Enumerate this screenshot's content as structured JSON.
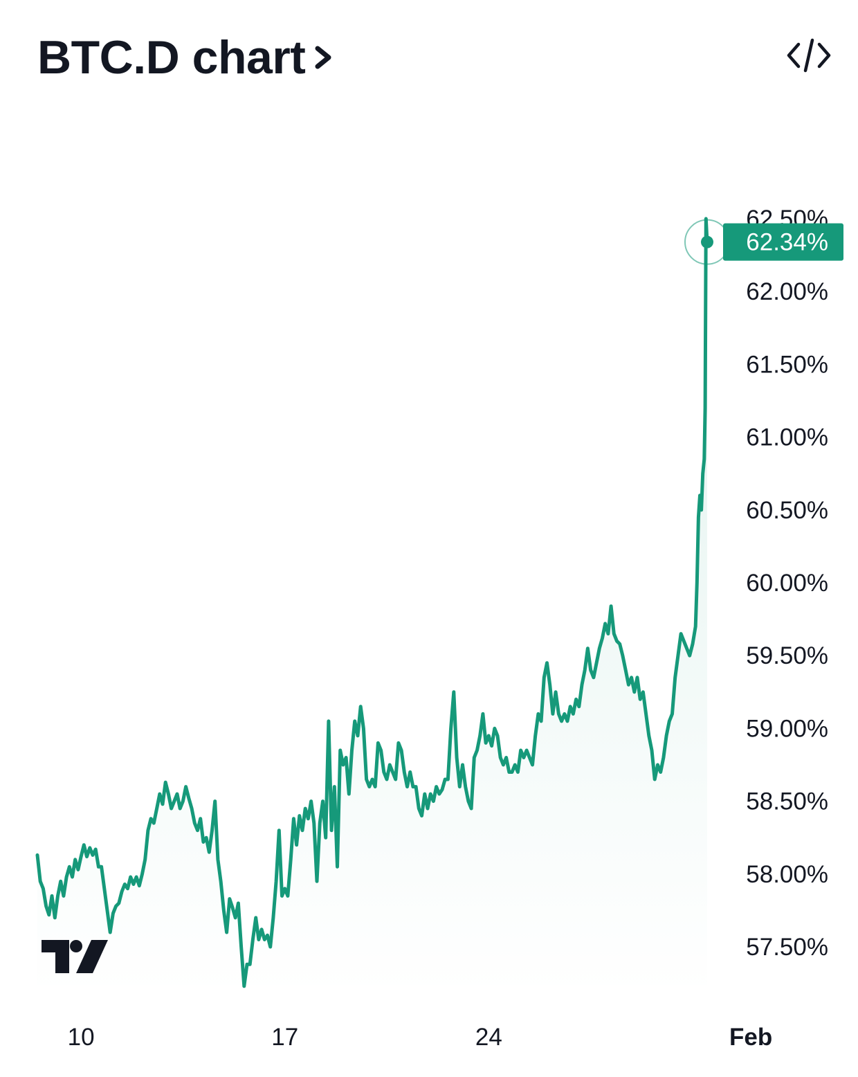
{
  "header": {
    "title": "BTC.D chart",
    "chevron_icon": "chevron-right-icon",
    "embed_icon": "code-embed-icon"
  },
  "logo": {
    "name": "tradingview-logo"
  },
  "colors": {
    "line": "#16997a",
    "badge": "#16997a",
    "text": "#131722"
  },
  "chart_data": {
    "type": "area",
    "title": "BTC.D chart",
    "xlabel": "",
    "ylabel": "",
    "ylim": [
      57.2,
      62.6
    ],
    "y_ticks": [
      62.5,
      62.0,
      61.5,
      61.0,
      60.5,
      60.0,
      59.5,
      59.0,
      58.5,
      58.0,
      57.5
    ],
    "y_tick_labels": [
      "62.50%",
      "62.00%",
      "61.50%",
      "61.00%",
      "60.50%",
      "60.00%",
      "59.50%",
      "59.00%",
      "58.50%",
      "58.00%",
      "57.50%"
    ],
    "x_ticks": [
      {
        "label": "10",
        "x": 9.5
      },
      {
        "label": "17",
        "x": 16.5
      },
      {
        "label": "24",
        "x": 23.5
      },
      {
        "label": "Feb",
        "x": 32.5,
        "bold": true
      }
    ],
    "last_value_label": "62.34%",
    "last_value": 62.34,
    "grid": false,
    "series": [
      {
        "values": [
          [
            8.0,
            58.13
          ],
          [
            8.1,
            57.95
          ],
          [
            8.2,
            57.9
          ],
          [
            8.3,
            57.78
          ],
          [
            8.4,
            57.72
          ],
          [
            8.5,
            57.85
          ],
          [
            8.6,
            57.7
          ],
          [
            8.7,
            57.85
          ],
          [
            8.8,
            57.95
          ],
          [
            8.9,
            57.85
          ],
          [
            9.0,
            57.98
          ],
          [
            9.1,
            58.05
          ],
          [
            9.2,
            57.98
          ],
          [
            9.3,
            58.1
          ],
          [
            9.4,
            58.03
          ],
          [
            9.5,
            58.12
          ],
          [
            9.6,
            58.2
          ],
          [
            9.7,
            58.12
          ],
          [
            9.8,
            58.18
          ],
          [
            9.9,
            58.13
          ],
          [
            10.0,
            58.17
          ],
          [
            10.1,
            58.05
          ],
          [
            10.2,
            58.05
          ],
          [
            10.3,
            57.9
          ],
          [
            10.4,
            57.75
          ],
          [
            10.5,
            57.6
          ],
          [
            10.6,
            57.73
          ],
          [
            10.7,
            57.78
          ],
          [
            10.8,
            57.8
          ],
          [
            10.9,
            57.88
          ],
          [
            11.0,
            57.93
          ],
          [
            11.1,
            57.9
          ],
          [
            11.2,
            57.98
          ],
          [
            11.3,
            57.93
          ],
          [
            11.4,
            57.98
          ],
          [
            11.5,
            57.92
          ],
          [
            11.6,
            58.0
          ],
          [
            11.7,
            58.1
          ],
          [
            11.8,
            58.3
          ],
          [
            11.9,
            58.38
          ],
          [
            12.0,
            58.35
          ],
          [
            12.1,
            58.45
          ],
          [
            12.2,
            58.55
          ],
          [
            12.3,
            58.48
          ],
          [
            12.4,
            58.63
          ],
          [
            12.5,
            58.55
          ],
          [
            12.6,
            58.45
          ],
          [
            12.7,
            58.5
          ],
          [
            12.8,
            58.55
          ],
          [
            12.9,
            58.45
          ],
          [
            13.0,
            58.5
          ],
          [
            13.1,
            58.6
          ],
          [
            13.2,
            58.52
          ],
          [
            13.3,
            58.45
          ],
          [
            13.4,
            58.35
          ],
          [
            13.5,
            58.3
          ],
          [
            13.6,
            58.38
          ],
          [
            13.7,
            58.22
          ],
          [
            13.8,
            58.25
          ],
          [
            13.9,
            58.15
          ],
          [
            14.0,
            58.3
          ],
          [
            14.1,
            58.5
          ],
          [
            14.2,
            58.1
          ],
          [
            14.3,
            57.95
          ],
          [
            14.4,
            57.75
          ],
          [
            14.5,
            57.6
          ],
          [
            14.6,
            57.83
          ],
          [
            14.7,
            57.77
          ],
          [
            14.8,
            57.7
          ],
          [
            14.9,
            57.8
          ],
          [
            15.0,
            57.5
          ],
          [
            15.1,
            57.23
          ],
          [
            15.2,
            57.38
          ],
          [
            15.3,
            57.38
          ],
          [
            15.4,
            57.55
          ],
          [
            15.5,
            57.7
          ],
          [
            15.6,
            57.55
          ],
          [
            15.7,
            57.62
          ],
          [
            15.8,
            57.55
          ],
          [
            15.9,
            57.58
          ],
          [
            16.0,
            57.5
          ],
          [
            16.1,
            57.7
          ],
          [
            16.2,
            57.95
          ],
          [
            16.3,
            58.3
          ],
          [
            16.4,
            57.85
          ],
          [
            16.5,
            57.9
          ],
          [
            16.6,
            57.85
          ],
          [
            16.7,
            58.1
          ],
          [
            16.8,
            58.38
          ],
          [
            16.9,
            58.2
          ],
          [
            17.0,
            58.4
          ],
          [
            17.1,
            58.3
          ],
          [
            17.2,
            58.45
          ],
          [
            17.3,
            58.38
          ],
          [
            17.4,
            58.5
          ],
          [
            17.5,
            58.35
          ],
          [
            17.6,
            57.95
          ],
          [
            17.7,
            58.35
          ],
          [
            17.8,
            58.5
          ],
          [
            17.9,
            58.25
          ],
          [
            18.0,
            59.05
          ],
          [
            18.1,
            58.3
          ],
          [
            18.2,
            58.6
          ],
          [
            18.3,
            58.05
          ],
          [
            18.4,
            58.85
          ],
          [
            18.5,
            58.75
          ],
          [
            18.6,
            58.8
          ],
          [
            18.7,
            58.55
          ],
          [
            18.8,
            58.85
          ],
          [
            18.9,
            59.05
          ],
          [
            19.0,
            58.95
          ],
          [
            19.1,
            59.15
          ],
          [
            19.2,
            59.0
          ],
          [
            19.3,
            58.65
          ],
          [
            19.4,
            58.6
          ],
          [
            19.5,
            58.65
          ],
          [
            19.6,
            58.6
          ],
          [
            19.7,
            58.9
          ],
          [
            19.8,
            58.85
          ],
          [
            19.9,
            58.7
          ],
          [
            20.0,
            58.65
          ],
          [
            20.1,
            58.75
          ],
          [
            20.2,
            58.7
          ],
          [
            20.3,
            58.65
          ],
          [
            20.4,
            58.9
          ],
          [
            20.5,
            58.85
          ],
          [
            20.6,
            58.7
          ],
          [
            20.7,
            58.6
          ],
          [
            20.8,
            58.7
          ],
          [
            20.9,
            58.6
          ],
          [
            21.0,
            58.6
          ],
          [
            21.1,
            58.45
          ],
          [
            21.2,
            58.4
          ],
          [
            21.3,
            58.55
          ],
          [
            21.4,
            58.45
          ],
          [
            21.5,
            58.55
          ],
          [
            21.6,
            58.5
          ],
          [
            21.7,
            58.6
          ],
          [
            21.8,
            58.55
          ],
          [
            21.9,
            58.58
          ],
          [
            22.0,
            58.65
          ],
          [
            22.1,
            58.65
          ],
          [
            22.2,
            59.0
          ],
          [
            22.3,
            59.25
          ],
          [
            22.4,
            58.8
          ],
          [
            22.5,
            58.6
          ],
          [
            22.6,
            58.75
          ],
          [
            22.7,
            58.6
          ],
          [
            22.8,
            58.5
          ],
          [
            22.9,
            58.45
          ],
          [
            23.0,
            58.8
          ],
          [
            23.1,
            58.85
          ],
          [
            23.2,
            58.95
          ],
          [
            23.3,
            59.1
          ],
          [
            23.4,
            58.9
          ],
          [
            23.5,
            58.95
          ],
          [
            23.6,
            58.88
          ],
          [
            23.7,
            59.0
          ],
          [
            23.8,
            58.95
          ],
          [
            23.9,
            58.8
          ],
          [
            24.0,
            58.75
          ],
          [
            24.1,
            58.8
          ],
          [
            24.2,
            58.7
          ],
          [
            24.3,
            58.7
          ],
          [
            24.4,
            58.75
          ],
          [
            24.5,
            58.7
          ],
          [
            24.6,
            58.85
          ],
          [
            24.7,
            58.8
          ],
          [
            24.8,
            58.85
          ],
          [
            24.9,
            58.8
          ],
          [
            25.0,
            58.75
          ],
          [
            25.1,
            58.95
          ],
          [
            25.2,
            59.1
          ],
          [
            25.3,
            59.05
          ],
          [
            25.4,
            59.35
          ],
          [
            25.5,
            59.45
          ],
          [
            25.6,
            59.3
          ],
          [
            25.7,
            59.1
          ],
          [
            25.8,
            59.25
          ],
          [
            25.9,
            59.1
          ],
          [
            26.0,
            59.05
          ],
          [
            26.1,
            59.1
          ],
          [
            26.2,
            59.05
          ],
          [
            26.3,
            59.15
          ],
          [
            26.4,
            59.1
          ],
          [
            26.5,
            59.2
          ],
          [
            26.6,
            59.15
          ],
          [
            26.7,
            59.3
          ],
          [
            26.8,
            59.4
          ],
          [
            26.9,
            59.55
          ],
          [
            27.0,
            59.4
          ],
          [
            27.1,
            59.35
          ],
          [
            27.2,
            59.45
          ],
          [
            27.3,
            59.55
          ],
          [
            27.4,
            59.62
          ],
          [
            27.5,
            59.72
          ],
          [
            27.6,
            59.65
          ],
          [
            27.7,
            59.84
          ],
          [
            27.8,
            59.65
          ],
          [
            27.9,
            59.6
          ],
          [
            28.0,
            59.58
          ],
          [
            28.1,
            59.5
          ],
          [
            28.2,
            59.4
          ],
          [
            28.3,
            59.3
          ],
          [
            28.4,
            59.35
          ],
          [
            28.5,
            59.25
          ],
          [
            28.6,
            59.35
          ],
          [
            28.7,
            59.2
          ],
          [
            28.8,
            59.25
          ],
          [
            28.9,
            59.1
          ],
          [
            29.0,
            58.95
          ],
          [
            29.1,
            58.85
          ],
          [
            29.2,
            58.65
          ],
          [
            29.3,
            58.75
          ],
          [
            29.4,
            58.7
          ],
          [
            29.5,
            58.8
          ],
          [
            29.6,
            58.95
          ],
          [
            29.7,
            59.05
          ],
          [
            29.8,
            59.1
          ],
          [
            29.9,
            59.35
          ],
          [
            30.0,
            59.5
          ],
          [
            30.1,
            59.65
          ],
          [
            30.2,
            59.6
          ],
          [
            30.3,
            59.55
          ],
          [
            30.4,
            59.5
          ],
          [
            30.5,
            59.58
          ],
          [
            30.6,
            59.7
          ],
          [
            30.65,
            60.0
          ],
          [
            30.7,
            60.45
          ],
          [
            30.75,
            60.6
          ],
          [
            30.8,
            60.5
          ],
          [
            30.85,
            60.75
          ],
          [
            30.9,
            60.85
          ],
          [
            30.93,
            61.2
          ],
          [
            30.96,
            62.5
          ],
          [
            31.0,
            62.34
          ]
        ]
      }
    ]
  }
}
